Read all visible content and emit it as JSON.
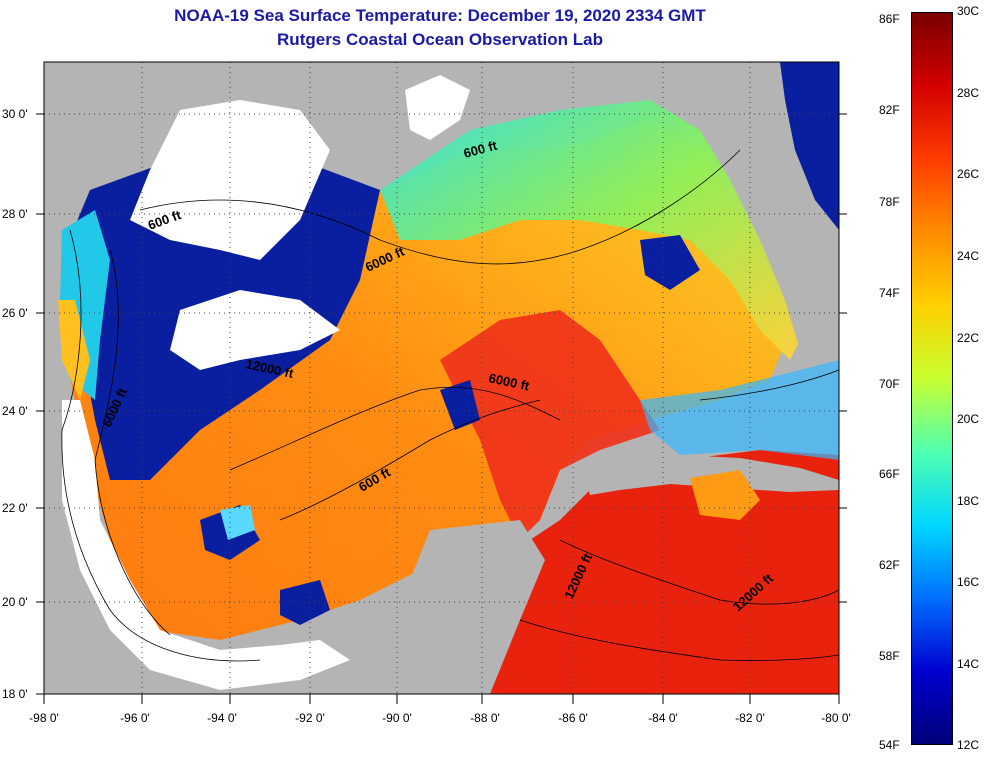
{
  "title": {
    "line1": "NOAA-19 Sea Surface Temperature:  December 19, 2020 2334 GMT",
    "line2": "Rutgers Coastal Ocean Observation Lab"
  },
  "axes": {
    "longitude_labels": [
      "-98 0'",
      "-96 0'",
      "-94 0'",
      "-92 0'",
      "-90 0'",
      "-88 0'",
      "-86 0'",
      "-84 0'",
      "-82 0'",
      "-80 0'"
    ],
    "latitude_labels": [
      "30 0'",
      "28 0'",
      "26 0'",
      "24 0'",
      "22 0'",
      "20 0'",
      "18 0'"
    ]
  },
  "contour_labels": [
    "600 ft",
    "600 ft",
    "6000 ft",
    "12000 ft",
    "6000 ft",
    "6000 ft",
    "600 ft",
    "12000 ft",
    "12000 ft"
  ],
  "colorbar": {
    "fahrenheit_labels": [
      "86F",
      "82F",
      "78F",
      "74F",
      "70F",
      "66F",
      "62F",
      "58F",
      "54F"
    ],
    "celsius_labels": [
      "30C",
      "28C",
      "26C",
      "24C",
      "22C",
      "20C",
      "18C",
      "16C",
      "14C",
      "12C"
    ],
    "gradient_colors": [
      "#7a0000",
      "#d40000",
      "#ff3c00",
      "#ff8c00",
      "#ffd000",
      "#c8ff30",
      "#50ffb0",
      "#00d8ff",
      "#0070ff",
      "#0000d0",
      "#00007a"
    ]
  },
  "colors": {
    "land": "#b4b4b4",
    "cloud": "#ffffff",
    "deep_blue": "#0a1ea0",
    "warm_red": "#f02a10",
    "orange": "#ff8a10"
  }
}
